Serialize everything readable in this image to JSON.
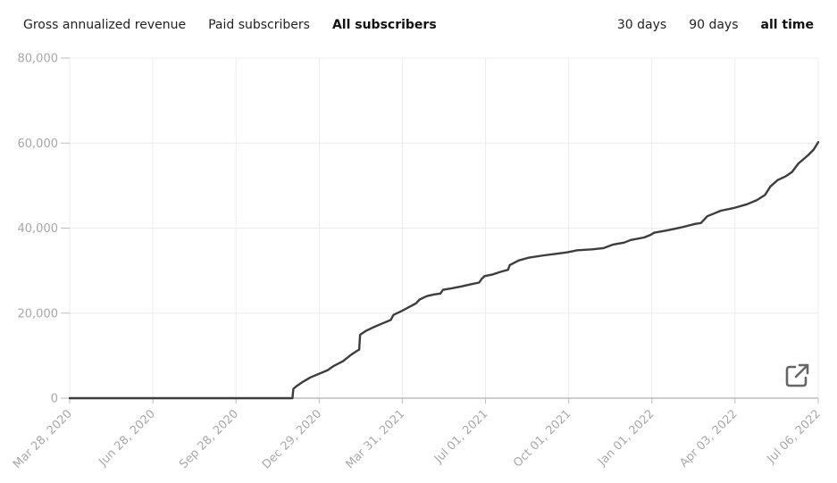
{
  "tabs": {
    "metrics": [
      {
        "label": "Gross annualized revenue",
        "active": false
      },
      {
        "label": "Paid subscribers",
        "active": false
      },
      {
        "label": "All subscribers",
        "active": true
      }
    ],
    "ranges": [
      {
        "label": "30 days",
        "active": false
      },
      {
        "label": "90 days",
        "active": false
      },
      {
        "label": "all time",
        "active": true
      }
    ]
  },
  "export_icon": "external-link-icon",
  "colors": {
    "line": "#3d3d3d",
    "grid": "#ececec",
    "axis": "#999999",
    "tick_text": "#a8a8a8"
  },
  "chart_data": {
    "type": "line",
    "title": "",
    "xlabel": "",
    "ylabel": "",
    "x_ticks": [
      "Mar 28, 2020",
      "Jun 28, 2020",
      "Sep 28, 2020",
      "Dec 29, 2020",
      "Mar 31, 2021",
      "Jul 01, 2021",
      "Oct 01, 2021",
      "Jan 01, 2022",
      "Apr 03, 2022",
      "Jul 06, 2022"
    ],
    "y_ticks": [
      "0",
      "20,000",
      "40,000",
      "60,000",
      "80,000"
    ],
    "xlim": [
      "2020-03-28",
      "2022-07-06"
    ],
    "ylim": [
      0,
      80000
    ],
    "grid": true,
    "series": [
      {
        "points": [
          [
            "2020-03-28",
            0
          ],
          [
            "2020-06-28",
            0
          ],
          [
            "2020-09-28",
            0
          ],
          [
            "2020-11-30",
            0
          ],
          [
            "2020-12-01",
            2200
          ],
          [
            "2020-12-05",
            2900
          ],
          [
            "2020-12-12",
            3900
          ],
          [
            "2020-12-20",
            4900
          ],
          [
            "2020-12-29",
            5700
          ],
          [
            "2021-01-08",
            6600
          ],
          [
            "2021-01-15",
            7600
          ],
          [
            "2021-01-25",
            8700
          ],
          [
            "2021-02-03",
            10200
          ],
          [
            "2021-02-10",
            11200
          ],
          [
            "2021-02-12",
            11400
          ],
          [
            "2021-02-13",
            14900
          ],
          [
            "2021-02-20",
            15900
          ],
          [
            "2021-03-01",
            16800
          ],
          [
            "2021-03-10",
            17600
          ],
          [
            "2021-03-19",
            18400
          ],
          [
            "2021-03-22",
            19600
          ],
          [
            "2021-03-31",
            20500
          ],
          [
            "2021-04-09",
            21500
          ],
          [
            "2021-04-16",
            22300
          ],
          [
            "2021-04-20",
            23200
          ],
          [
            "2021-04-28",
            24000
          ],
          [
            "2021-05-06",
            24400
          ],
          [
            "2021-05-13",
            24600
          ],
          [
            "2021-05-16",
            25500
          ],
          [
            "2021-05-25",
            25800
          ],
          [
            "2021-06-06",
            26300
          ],
          [
            "2021-06-18",
            26900
          ],
          [
            "2021-06-25",
            27200
          ],
          [
            "2021-06-28",
            28100
          ],
          [
            "2021-07-01",
            28700
          ],
          [
            "2021-07-10",
            29100
          ],
          [
            "2021-07-20",
            29800
          ],
          [
            "2021-07-27",
            30200
          ],
          [
            "2021-07-29",
            31300
          ],
          [
            "2021-08-08",
            32400
          ],
          [
            "2021-08-20",
            33100
          ],
          [
            "2021-09-05",
            33600
          ],
          [
            "2021-09-20",
            34000
          ],
          [
            "2021-10-01",
            34300
          ],
          [
            "2021-10-12",
            34800
          ],
          [
            "2021-10-28",
            35000
          ],
          [
            "2021-11-10",
            35300
          ],
          [
            "2021-11-20",
            36100
          ],
          [
            "2021-12-03",
            36600
          ],
          [
            "2021-12-10",
            37200
          ],
          [
            "2021-12-25",
            37800
          ],
          [
            "2022-01-01",
            38400
          ],
          [
            "2022-01-05",
            38900
          ],
          [
            "2022-01-20",
            39500
          ],
          [
            "2022-02-05",
            40200
          ],
          [
            "2022-02-20",
            41000
          ],
          [
            "2022-02-26",
            41200
          ],
          [
            "2022-03-05",
            42800
          ],
          [
            "2022-03-20",
            44100
          ],
          [
            "2022-04-03",
            44700
          ],
          [
            "2022-04-18",
            45600
          ],
          [
            "2022-04-29",
            46600
          ],
          [
            "2022-05-08",
            47800
          ],
          [
            "2022-05-14",
            49800
          ],
          [
            "2022-05-22",
            51300
          ],
          [
            "2022-05-31",
            52200
          ],
          [
            "2022-06-07",
            53200
          ],
          [
            "2022-06-14",
            55200
          ],
          [
            "2022-06-25",
            57200
          ],
          [
            "2022-07-01",
            58500
          ],
          [
            "2022-07-06",
            60200
          ]
        ]
      }
    ]
  }
}
